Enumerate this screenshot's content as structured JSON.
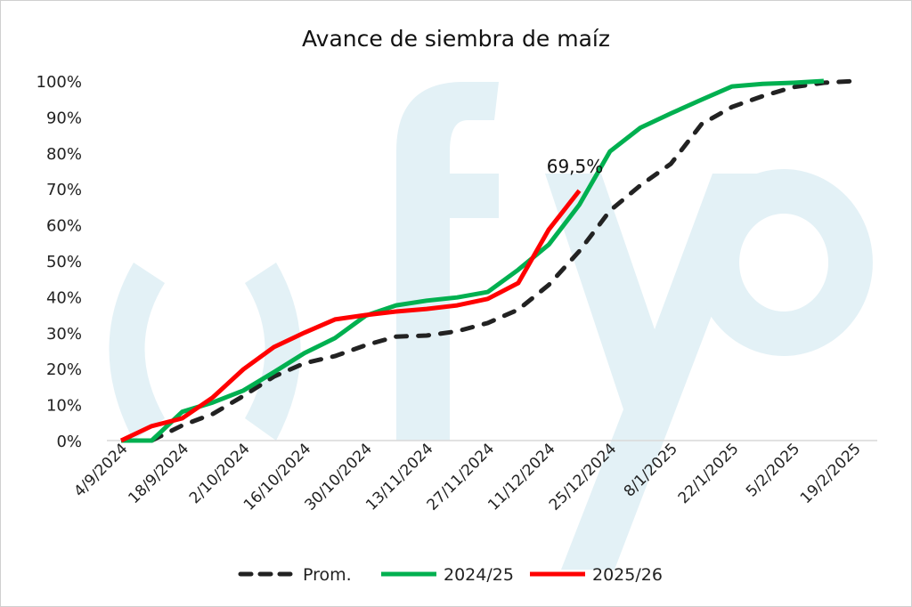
{
  "watermark": "fyo",
  "chart_data": {
    "type": "line",
    "title": "Avance de siembra de maíz",
    "xlabel": "",
    "ylabel": "",
    "ylim": [
      0,
      100
    ],
    "yticks": [
      "0%",
      "10%",
      "20%",
      "30%",
      "40%",
      "50%",
      "60%",
      "70%",
      "80%",
      "90%",
      "100%"
    ],
    "xtick_labels": [
      "4/9/2024",
      "18/9/2024",
      "2/10/2024",
      "16/10/2024",
      "30/10/2024",
      "13/11/2024",
      "27/11/2024",
      "11/12/2024",
      "25/12/2024",
      "8/1/2025",
      "22/1/2025",
      "5/2/2025",
      "19/2/2025"
    ],
    "x_weeks": [
      0,
      1,
      2,
      3,
      4,
      5,
      6,
      7,
      8,
      9,
      10,
      11,
      12,
      13,
      14,
      15,
      16,
      17,
      18,
      19,
      20,
      21,
      22,
      23,
      24
    ],
    "legend_position": "bottom",
    "annotation": "69,5%",
    "series": [
      {
        "name": "Prom.",
        "color": "#222222",
        "dashed": true,
        "values": [
          null,
          0,
          4.2,
          7.4,
          12.4,
          17.8,
          21.5,
          23.5,
          26.5,
          28.9,
          29.2,
          30.4,
          32.7,
          36.4,
          43.3,
          52.7,
          63.9,
          71,
          77,
          88,
          92.8,
          95.8,
          98.3,
          99.5,
          100
        ]
      },
      {
        "name": "2024/25",
        "color": "#00b050",
        "dashed": false,
        "values": [
          0,
          0,
          8,
          10.6,
          13.9,
          19,
          24.3,
          28.5,
          34.7,
          37.6,
          38.9,
          39.8,
          41.3,
          47.5,
          54.5,
          65.6,
          80.4,
          87,
          91,
          94.8,
          98.5,
          99.2,
          99.5,
          100,
          null
        ]
      },
      {
        "name": "2025/26",
        "color": "#ff0000",
        "dashed": false,
        "values": [
          0,
          4,
          6.2,
          12,
          19.8,
          26,
          30,
          33.7,
          34.9,
          35.9,
          36.6,
          37.6,
          39.4,
          43.8,
          58.7,
          69.5,
          null,
          null,
          null,
          null,
          null,
          null,
          null,
          null,
          null
        ]
      }
    ]
  }
}
